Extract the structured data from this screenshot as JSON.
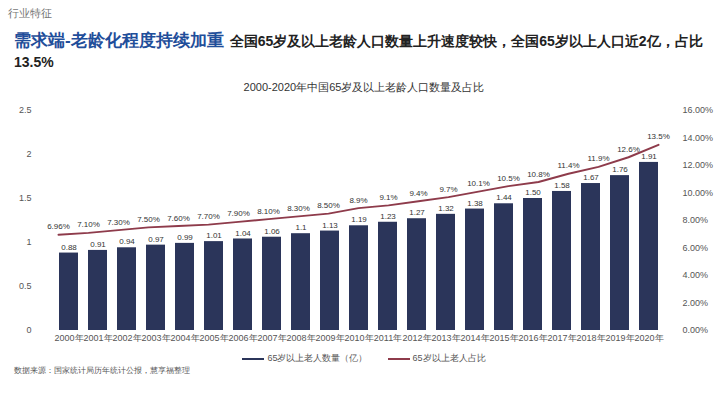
{
  "chart_data": {
    "type": "bar",
    "header": "行业特征",
    "headline": [
      "需求端-老龄化程度持续加重",
      "全国65岁及以上老龄人口数量上升速度较快，全国65岁以上人口近2亿，占比13.5%"
    ],
    "title": "2000-2020年中国65岁及以上老龄人口数量及占比",
    "source": "数据来源：国家统计局历年统计公报，慧享福整理",
    "categories": [
      "2000年",
      "2001年",
      "2002年",
      "2003年",
      "2004年",
      "2005年",
      "2006年",
      "2007年",
      "2008年",
      "2009年",
      "2010年",
      "2011年",
      "2012年",
      "2013年",
      "2014年",
      "2015年",
      "2016年",
      "2017年",
      "2018年",
      "2019年",
      "2020年"
    ],
    "series": [
      {
        "name": "65岁以上老人数量（亿）",
        "type": "bar",
        "color": "#2b355a",
        "values": [
          0.88,
          0.91,
          0.94,
          0.97,
          0.99,
          1.01,
          1.04,
          1.06,
          1.1,
          1.13,
          1.19,
          1.23,
          1.27,
          1.32,
          1.38,
          1.44,
          1.5,
          1.58,
          1.67,
          1.76,
          1.91
        ],
        "value_labels": [
          "0.88",
          "0.91",
          "0.94",
          "0.97",
          "0.99",
          "1.01",
          "1.04",
          "1.06",
          "1.1",
          "1.13",
          "1.19",
          "1.23",
          "1.27",
          "1.32",
          "1.38",
          "1.44",
          "1.50",
          "1.58",
          "1.67",
          "1.76",
          "1.91"
        ]
      },
      {
        "name": "65岁以上老人占比",
        "type": "line",
        "axis": "y2",
        "color": "#8e3b4b",
        "values": [
          6.96,
          7.1,
          7.3,
          7.5,
          7.6,
          7.7,
          7.9,
          8.1,
          8.3,
          8.5,
          8.9,
          9.1,
          9.4,
          9.7,
          10.1,
          10.5,
          10.8,
          11.4,
          11.9,
          12.6,
          13.5
        ],
        "value_labels": [
          "6.96%",
          "7.10%",
          "7.30%",
          "7.50%",
          "7.60%",
          "7.70%",
          "7.90%",
          "8.10%",
          "8.30%",
          "8.50%",
          "8.9%",
          "9.1%",
          "9.4%",
          "9.7%",
          "10.1%",
          "10.5%",
          "10.8%",
          "11.4%",
          "11.9%",
          "12.6%",
          "13.5%"
        ]
      }
    ],
    "ylim": [
      0,
      2.5
    ],
    "yticks": [
      0,
      0.5,
      1,
      1.5,
      2,
      2.5
    ],
    "y2lim": [
      0,
      16
    ],
    "y2ticks": [
      {
        "value": 0,
        "label": "0.00%"
      },
      {
        "value": 2,
        "label": "2.00%"
      },
      {
        "value": 4,
        "label": "4.00%"
      },
      {
        "value": 6,
        "label": "6.00%"
      },
      {
        "value": 8,
        "label": "8.00%"
      },
      {
        "value": 10,
        "label": "10.00%"
      },
      {
        "value": 12,
        "label": "12.00%"
      },
      {
        "value": 14,
        "label": "14.00%"
      },
      {
        "value": 16,
        "label": "16.00%"
      }
    ],
    "grid": false,
    "legend": "bottom",
    "data_labels": true
  }
}
